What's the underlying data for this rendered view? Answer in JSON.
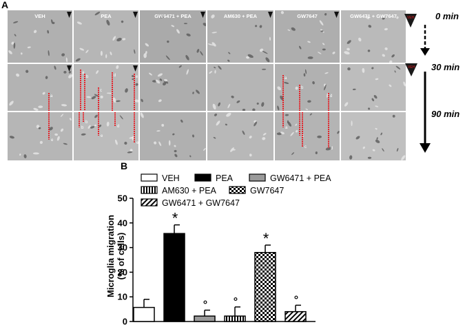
{
  "panel_a": {
    "letter": "A",
    "columns": [
      "VEH",
      "PEA",
      "GW6471 + PEA",
      "AM630 + PEA",
      "GW7647",
      "GW6471 + GW7647"
    ],
    "times": [
      "0 min",
      "30 min",
      "90 min"
    ],
    "marker_labels": {
      "veh_row0": "VEH",
      "veh_row1": "VEH"
    },
    "track_letters": [
      "a",
      "b",
      "c",
      "d",
      "e"
    ]
  },
  "panel_b": {
    "letter": "B",
    "legend": [
      "VEH",
      "PEA",
      "GW6471 + PEA",
      "AM630 + PEA",
      "GW7647",
      "GW6471 + GW7647"
    ],
    "ylabel_line1": "Microglia migration",
    "ylabel_line2": "(% of cells)",
    "significance": {
      "star": "*",
      "circle": "°"
    }
  },
  "chart_data": {
    "type": "bar",
    "categories": [
      "VEH",
      "PEA",
      "GW6471 + PEA",
      "AM630 + PEA",
      "GW7647",
      "GW6471 + GW7647"
    ],
    "values": [
      5.7,
      35.7,
      2.2,
      2.2,
      28.0,
      4.0
    ],
    "errors": [
      3.3,
      3.5,
      2.4,
      3.7,
      3.0,
      2.6
    ],
    "significance": [
      "",
      "*",
      "°",
      "°",
      "*",
      "°"
    ],
    "ylabel": "Microglia migration (% of cells)",
    "ylim": [
      0,
      50
    ],
    "yticks": [
      0,
      10,
      20,
      30,
      40,
      50
    ],
    "fills": [
      "white",
      "black",
      "gray",
      "vertical-stripes",
      "checkerboard",
      "diagonal-stripes"
    ],
    "colors": {
      "gray": "#9a9a9a",
      "bar_outline": "#000000",
      "arrow_red": "#e8141c"
    }
  }
}
